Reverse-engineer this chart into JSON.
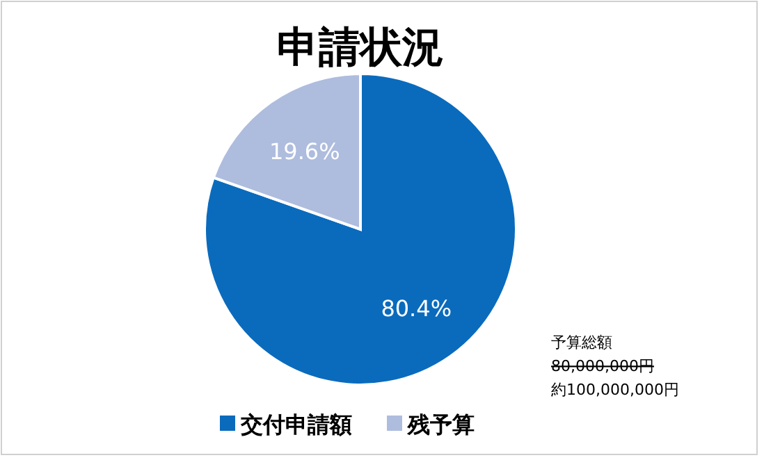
{
  "chart_data": {
    "type": "pie",
    "title": "申請状況",
    "categories": [
      "交付申請額",
      "残予算"
    ],
    "values": [
      80.4,
      19.6
    ],
    "colors": [
      "#0a6bbd",
      "#aebcde"
    ],
    "value_labels": [
      "80.4%",
      "19.6%"
    ],
    "legend": "bottom",
    "annotations": [
      "予算総額",
      "80,000,000円",
      "約100,000,000円"
    ]
  }
}
